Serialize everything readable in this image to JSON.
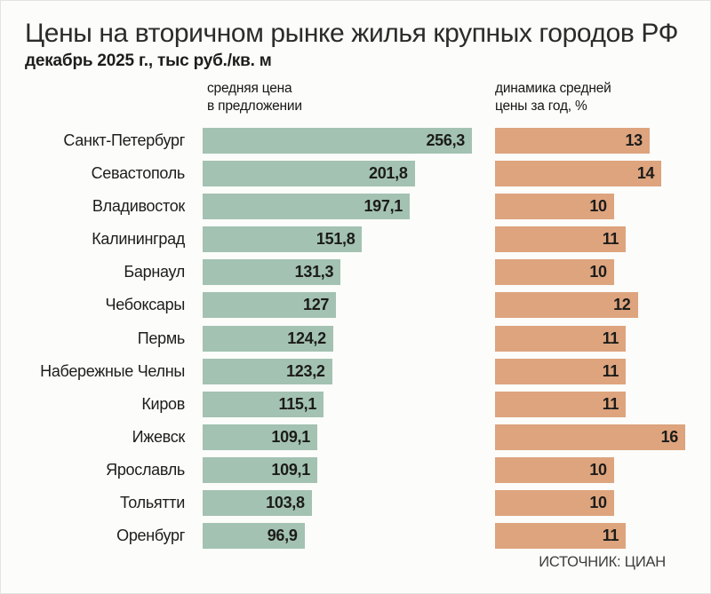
{
  "header": {
    "title": "Цены на вторичном рынке жилья крупных городов РФ",
    "subtitle": "декабрь 2025 г., тыс руб./кв. м"
  },
  "columns": {
    "price": {
      "line1": "средняя цена",
      "line2": "в предложении"
    },
    "dynamics": {
      "line1": "динамика средней",
      "line2": "цены за год, %"
    }
  },
  "footer": {
    "source": "ИСТОЧНИК: ЦИАН"
  },
  "colors": {
    "price_bar": "#a3c2b2",
    "dynamics_bar": "#dda47e",
    "text_dark": "#1d1d1b",
    "background": "#fcfcfa"
  },
  "chart_data": {
    "type": "bar",
    "orientation": "horizontal",
    "title": "Цены на вторичном рынке жилья крупных городов РФ",
    "subtitle": "декабрь 2025 г., тыс руб./кв. м",
    "grid": false,
    "legend": "none",
    "source": "ИСТОЧНИК: ЦИАН",
    "categories": [
      "Санкт-Петербург",
      "Севастополь",
      "Владивосток",
      "Калининград",
      "Барнаул",
      "Чебоксары",
      "Пермь",
      "Набережные Челны",
      "Киров",
      "Ижевск",
      "Ярославль",
      "Тольятти",
      "Оренбург"
    ],
    "series": [
      {
        "name": "средняя цена в предложении",
        "unit": "тыс руб./кв. м",
        "xlim": [
          0,
          256.3
        ],
        "values": [
          256.3,
          201.8,
          197.1,
          151.8,
          131.3,
          127,
          124.2,
          123.2,
          115.1,
          109.1,
          109.1,
          103.8,
          96.9
        ],
        "labels": [
          "256,3",
          "201,8",
          "197,1",
          "151,8",
          "131,3",
          "127",
          "124,2",
          "123,2",
          "115,1",
          "109,1",
          "109,1",
          "103,8",
          "96,9"
        ]
      },
      {
        "name": "динамика средней цены за год, %",
        "unit": "%",
        "xlim": [
          0,
          16
        ],
        "values": [
          13,
          14,
          10,
          11,
          10,
          12,
          11,
          11,
          11,
          16,
          10,
          10,
          11
        ],
        "labels": [
          "13",
          "14",
          "10",
          "11",
          "10",
          "12",
          "11",
          "11",
          "11",
          "16",
          "10",
          "10",
          "11"
        ]
      }
    ]
  }
}
